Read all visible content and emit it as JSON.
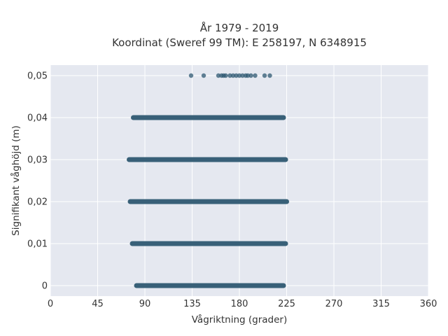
{
  "chart_data": {
    "type": "scatter",
    "title_line1": "År 1979 - 2019",
    "title_line2": "Koordinat (Sweref 99 TM): E 258197, N 6348915",
    "xlabel": "Vågriktning (grader)",
    "ylabel": "Signifikant våghöjd (m)",
    "xlim": [
      0,
      360
    ],
    "ylim": [
      -0.0025,
      0.0525
    ],
    "x_ticks": [
      0,
      45,
      90,
      135,
      180,
      225,
      270,
      315,
      360
    ],
    "x_tick_labels": [
      "0",
      "45",
      "90",
      "135",
      "180",
      "225",
      "270",
      "315",
      "360"
    ],
    "y_ticks": [
      0,
      0.01,
      0.02,
      0.03,
      0.04,
      0.05
    ],
    "y_tick_labels": [
      "0",
      "0,01",
      "0,02",
      "0,03",
      "0,04",
      "0,05"
    ],
    "grid": true,
    "background": "#e5e8f0",
    "marker_color": "#2e5871",
    "bands": [
      {
        "y": 0.0,
        "x_min": 82,
        "x_max": 222
      },
      {
        "y": 0.01,
        "x_min": 78,
        "x_max": 224
      },
      {
        "y": 0.02,
        "x_min": 76,
        "x_max": 225
      },
      {
        "y": 0.03,
        "x_min": 75,
        "x_max": 224
      },
      {
        "y": 0.04,
        "x_min": 79,
        "x_max": 222
      }
    ],
    "points": [
      {
        "x": 134,
        "y": 0.05
      },
      {
        "x": 146,
        "y": 0.05
      },
      {
        "x": 160,
        "y": 0.05
      },
      {
        "x": 163,
        "y": 0.05
      },
      {
        "x": 165,
        "y": 0.05
      },
      {
        "x": 167,
        "y": 0.05
      },
      {
        "x": 171,
        "y": 0.05
      },
      {
        "x": 174,
        "y": 0.05
      },
      {
        "x": 177,
        "y": 0.05
      },
      {
        "x": 180,
        "y": 0.05
      },
      {
        "x": 183,
        "y": 0.05
      },
      {
        "x": 186,
        "y": 0.05
      },
      {
        "x": 188,
        "y": 0.05
      },
      {
        "x": 191,
        "y": 0.05
      },
      {
        "x": 195,
        "y": 0.05
      },
      {
        "x": 204,
        "y": 0.05
      },
      {
        "x": 209,
        "y": 0.05
      }
    ]
  }
}
